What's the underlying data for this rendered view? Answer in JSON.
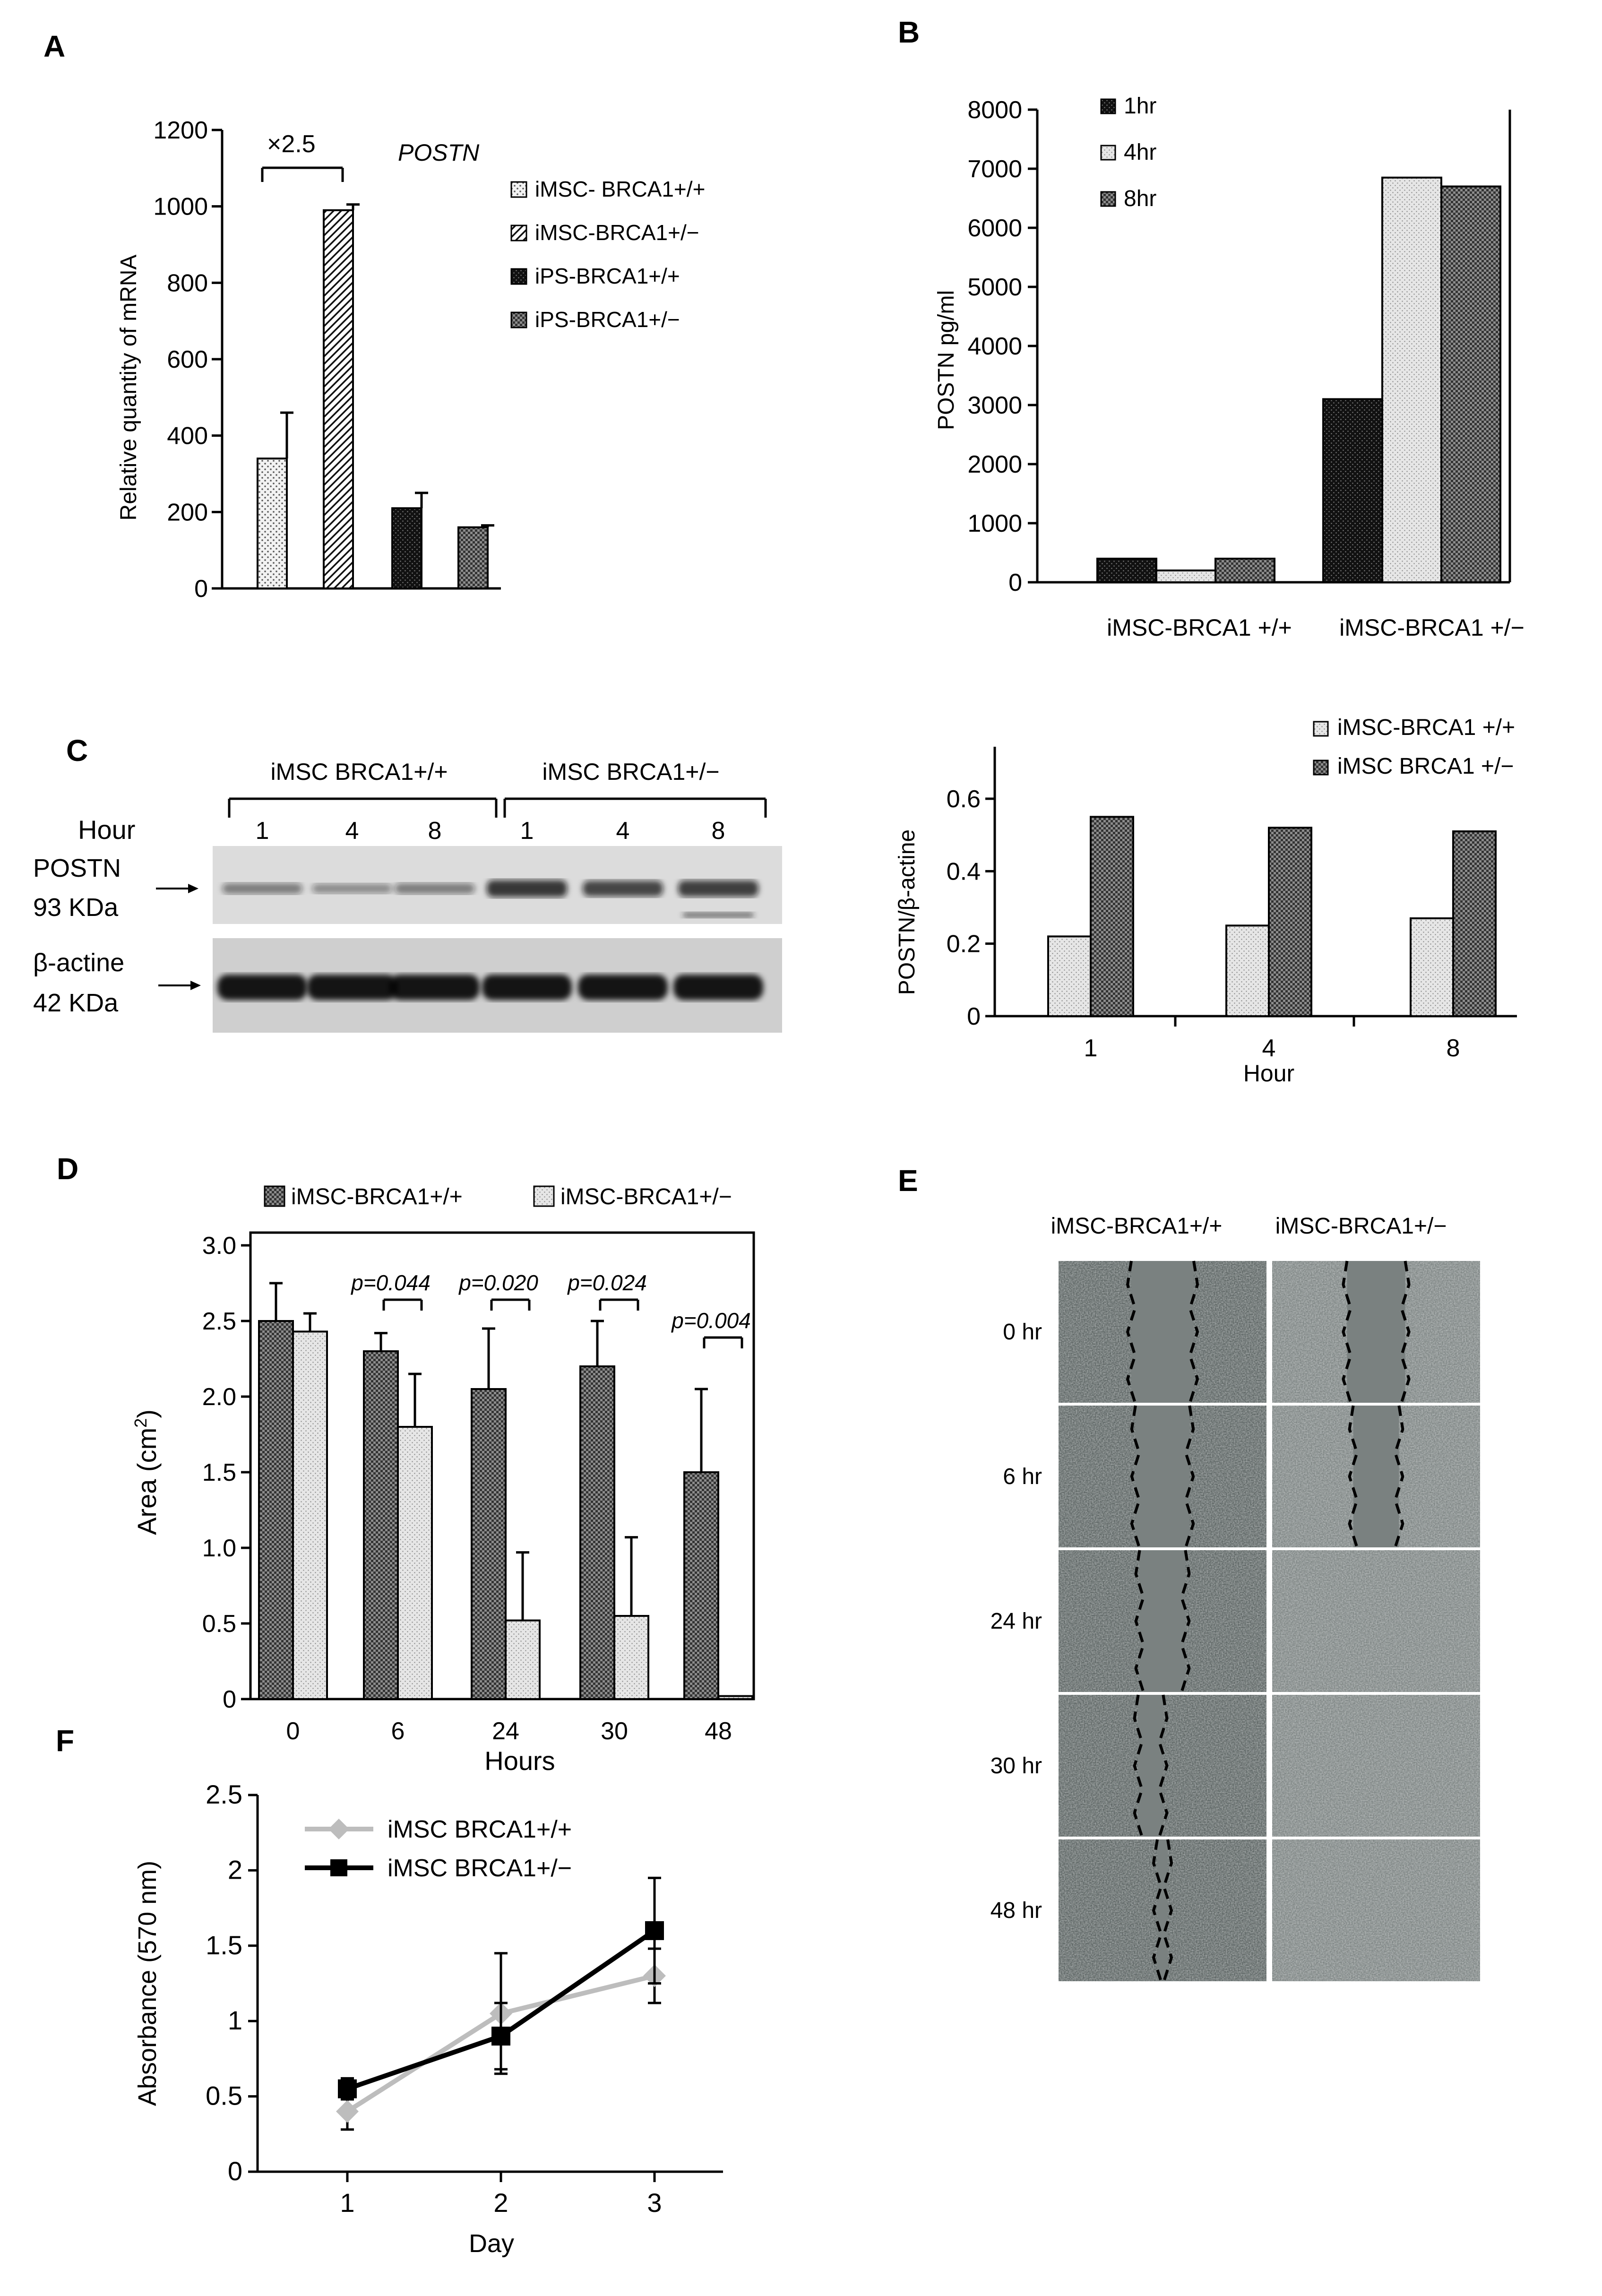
{
  "colors": {
    "ink": "#000000",
    "light_series": "#bdbdbd",
    "gel_bg": "#d9d9d9",
    "micro_dark": "#525a5a",
    "micro_light": "#8a9190",
    "gap": "#7b8281"
  },
  "panels": {
    "A": "A",
    "B": "B",
    "C": "C",
    "D": "D",
    "E": "E",
    "F": "F"
  },
  "chart_data": [
    {
      "id": "A",
      "type": "bar",
      "title": "POSTN",
      "ylabel": "Relative quantity of  mRNA",
      "xlabel": "",
      "ylim": [
        0,
        1200
      ],
      "yticks": [
        0,
        200,
        400,
        600,
        800,
        1000,
        1200
      ],
      "bars": [
        {
          "name": "iMSC- BRCA1+/+",
          "value": 340,
          "error": 120,
          "pattern": "dots"
        },
        {
          "name": "iMSC-BRCA1+/−",
          "value": 990,
          "error": 15,
          "pattern": "diag"
        },
        {
          "name": "iPS-BRCA1+/+",
          "value": 210,
          "error": 40,
          "pattern": "dark"
        },
        {
          "name": "iPS-BRCA1+/−",
          "value": 160,
          "error": 5,
          "pattern": "check"
        }
      ],
      "annotation": "×2.5",
      "legend": [
        "iMSC- BRCA1+/+",
        "iMSC-BRCA1+/−",
        "iPS-BRCA1+/+",
        "iPS-BRCA1+/−"
      ],
      "legend_position": "right"
    },
    {
      "id": "B",
      "type": "bar",
      "ylabel": "POSTN  pg/ml",
      "ylim": [
        0,
        8000
      ],
      "yticks": [
        0,
        1000,
        2000,
        3000,
        4000,
        5000,
        6000,
        7000,
        8000
      ],
      "categories": [
        "iMSC-BRCA1 +/+",
        "iMSC-BRCA1 +/−"
      ],
      "series": [
        {
          "name": "1hr",
          "values": [
            400,
            3100
          ],
          "pattern": "dark"
        },
        {
          "name": "4hr",
          "values": [
            200,
            6850
          ],
          "pattern": "light"
        },
        {
          "name": "8hr",
          "values": [
            400,
            6700
          ],
          "pattern": "check"
        }
      ],
      "legend_position": "top-left"
    },
    {
      "id": "C-chart",
      "type": "bar",
      "ylabel": "POSTN/β-actine",
      "xlabel": "Hour",
      "ylim": [
        0,
        0.6
      ],
      "yticks": [
        0,
        0.2,
        0.4,
        0.6
      ],
      "ytick_labels": [
        "0",
        "0.2",
        "0.4",
        "0.6"
      ],
      "categories": [
        "1",
        "4",
        "8"
      ],
      "series": [
        {
          "name": "iMSC-BRCA1 +/+",
          "values": [
            0.22,
            0.25,
            0.27
          ],
          "pattern": "light"
        },
        {
          "name": "iMSC BRCA1 +/−",
          "values": [
            0.55,
            0.52,
            0.51
          ],
          "pattern": "check"
        }
      ],
      "legend_position": "top"
    },
    {
      "id": "D",
      "type": "bar",
      "ylabel": "Area  (cm",
      "ylabel_sup": "2",
      "ylabel_end": ")",
      "xlabel": "Hours",
      "ylim": [
        0,
        3.0
      ],
      "yticks": [
        0,
        0.5,
        1.0,
        1.5,
        2.0,
        2.5,
        3.0
      ],
      "ytick_labels": [
        "0",
        "0.5",
        "1.0",
        "1.5",
        "2.0",
        "2.5",
        "3.0"
      ],
      "categories": [
        "0",
        "6",
        "24",
        "30",
        "48"
      ],
      "series": [
        {
          "name": "iMSC-BRCA1+/+",
          "values": [
            2.5,
            2.3,
            2.05,
            2.2,
            1.5
          ],
          "errors": [
            0.25,
            0.12,
            0.4,
            0.3,
            0.55
          ],
          "pattern": "check"
        },
        {
          "name": "iMSC-BRCA1+/−",
          "values": [
            2.43,
            1.8,
            0.52,
            0.55,
            0.02
          ],
          "errors": [
            0.12,
            0.35,
            0.45,
            0.52,
            0.0
          ],
          "pattern": "light"
        }
      ],
      "pvalues": [
        {
          "category": "6",
          "text": "p=0.044"
        },
        {
          "category": "24",
          "text": "p=0.020"
        },
        {
          "category": "30",
          "text": "p=0.024"
        },
        {
          "category": "48",
          "text": "p=0.004"
        }
      ],
      "legend_position": "top"
    },
    {
      "id": "F",
      "type": "line",
      "ylabel": "Absorbance (570 nm)",
      "xlabel": "Day",
      "ylim": [
        0,
        2.5
      ],
      "yticks": [
        0,
        0.5,
        1,
        1.5,
        2,
        2.5
      ],
      "ytick_labels": [
        "0",
        "0.5",
        "1",
        "1.5",
        "2",
        "2.5"
      ],
      "x": [
        1,
        2,
        3
      ],
      "series": [
        {
          "name": "iMSC BRCA1+/+",
          "values": [
            0.4,
            1.05,
            1.3
          ],
          "errors": [
            0.12,
            0.4,
            0.18
          ],
          "marker": "diamond"
        },
        {
          "name": "iMSC BRCA1+/−",
          "values": [
            0.55,
            0.9,
            1.6
          ],
          "errors": [
            0.07,
            0.22,
            0.35
          ],
          "marker": "square"
        }
      ],
      "legend_position": "top-left"
    }
  ],
  "blot": {
    "group1": "iMSC BRCA1+/+",
    "group2": "iMSC BRCA1+/−",
    "hour_label": "Hour",
    "lanes": [
      "1",
      "4",
      "8",
      "1",
      "4",
      "8"
    ],
    "band1_name": "POSTN",
    "band1_kda": "93 KDa",
    "band2_name": "β-actine",
    "band2_kda": "42 KDa",
    "postn_intensity": [
      0.35,
      0.25,
      0.35,
      0.85,
      0.75,
      0.8
    ],
    "actin_intensity": [
      1,
      1,
      1,
      1,
      1,
      1
    ]
  },
  "wound": {
    "col1": "iMSC-BRCA1+/+",
    "col2": "iMSC-BRCA1+/−",
    "rows": [
      "0 hr",
      "6 hr",
      "24 hr",
      "30 hr",
      "48 hr"
    ]
  }
}
